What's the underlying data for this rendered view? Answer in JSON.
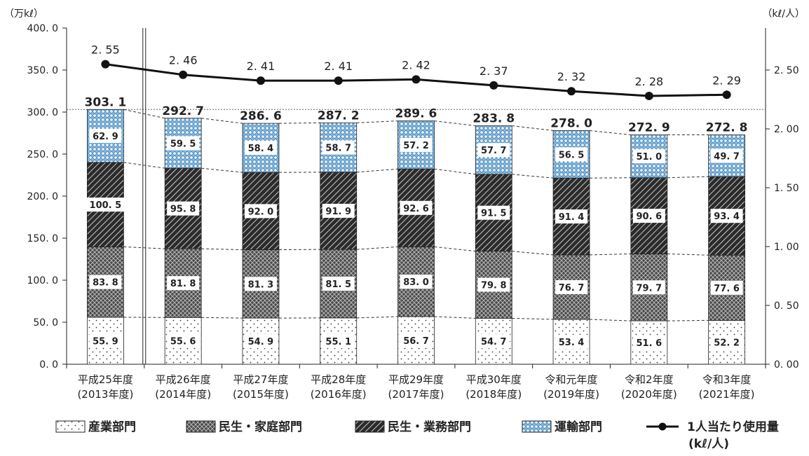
{
  "chart_data": {
    "type": "bar",
    "stacked": true,
    "left_axis": {
      "unit": "（万kℓ）",
      "ylim": [
        0,
        400
      ],
      "ticks": [
        "0. 0",
        "50. 0",
        "100. 0",
        "150. 0",
        "200. 0",
        "250. 0",
        "300. 0",
        "350. 0",
        "400. 0"
      ]
    },
    "right_axis": {
      "unit": "（kℓ/人）",
      "ylim": [
        0,
        2.857
      ],
      "ticks": [
        {
          "value": 0.0,
          "label": "0. 00"
        },
        {
          "value": 0.5,
          "label": "0. 50"
        },
        {
          "value": 1.0,
          "label": "1. 00"
        },
        {
          "value": 1.5,
          "label": "1. 50"
        },
        {
          "value": 2.0,
          "label": "2. 00"
        },
        {
          "value": 2.5,
          "label": "2. 50"
        }
      ]
    },
    "categories": [
      {
        "line1": "平成25年度",
        "line2": "(2013年度)"
      },
      {
        "line1": "平成26年度",
        "line2": "(2014年度)"
      },
      {
        "line1": "平成27年度",
        "line2": "(2015年度)"
      },
      {
        "line1": "平成28年度",
        "line2": "(2016年度)"
      },
      {
        "line1": "平成29年度",
        "line2": "(2017年度)"
      },
      {
        "line1": "平成30年度",
        "line2": "(2018年度)"
      },
      {
        "line1": "令和元年度",
        "line2": "(2019年度)"
      },
      {
        "line1": "令和2年度",
        "line2": "(2020年度)"
      },
      {
        "line1": "令和3年度",
        "line2": "(2021年度)"
      }
    ],
    "series": [
      {
        "name": "産業部門",
        "values": [
          55.9,
          55.6,
          54.9,
          55.1,
          56.7,
          54.7,
          53.4,
          51.6,
          52.2
        ],
        "labels": [
          "55. 9",
          "55. 6",
          "54. 9",
          "55. 1",
          "56. 7",
          "54. 7",
          "53. 4",
          "51. 6",
          "52. 2"
        ]
      },
      {
        "name": "民生・家庭部門",
        "values": [
          83.8,
          81.8,
          81.3,
          81.5,
          83.0,
          79.8,
          76.7,
          79.7,
          77.6
        ],
        "labels": [
          "83. 8",
          "81. 8",
          "81. 3",
          "81. 5",
          "83. 0",
          "79. 8",
          "76. 7",
          "79. 7",
          "77. 6"
        ]
      },
      {
        "name": "民生・業務部門",
        "values": [
          100.5,
          95.8,
          92.0,
          91.9,
          92.6,
          91.5,
          91.4,
          90.6,
          93.4
        ],
        "labels": [
          "100. 5",
          "95. 8",
          "92. 0",
          "91. 9",
          "92. 6",
          "91. 5",
          "91. 4",
          "90. 6",
          "93. 4"
        ]
      },
      {
        "name": "運輸部門",
        "values": [
          62.9,
          59.5,
          58.4,
          58.7,
          57.2,
          57.7,
          56.5,
          51.0,
          49.7
        ],
        "labels": [
          "62. 9",
          "59. 5",
          "58. 4",
          "58. 7",
          "57. 2",
          "57. 7",
          "56. 5",
          "51. 0",
          "49. 7"
        ]
      }
    ],
    "totals": [
      303.1,
      292.7,
      286.6,
      287.2,
      289.6,
      283.8,
      278.0,
      272.9,
      272.8
    ],
    "total_labels": [
      "303. 1",
      "292. 7",
      "286. 6",
      "287. 2",
      "289. 6",
      "283. 8",
      "278. 0",
      "272. 9",
      "272. 8"
    ],
    "per_capita": {
      "name": "1人当たり使用量",
      "unit": "(kℓ/人)",
      "axis": "right",
      "values": [
        2.55,
        2.46,
        2.41,
        2.41,
        2.42,
        2.37,
        2.32,
        2.28,
        2.29
      ],
      "labels": [
        "2. 55",
        "2. 46",
        "2. 41",
        "2. 41",
        "2. 42",
        "2. 37",
        "2. 32",
        "2. 28",
        "2. 29"
      ]
    },
    "reference_line_value": 303.1,
    "legend_position": "bottom",
    "colors": {
      "industry_fill": "#ffffff",
      "household_fill": "#555555",
      "business_fill": "#333333",
      "transport_fill": "#7fb6dc",
      "line": "#111111"
    }
  }
}
